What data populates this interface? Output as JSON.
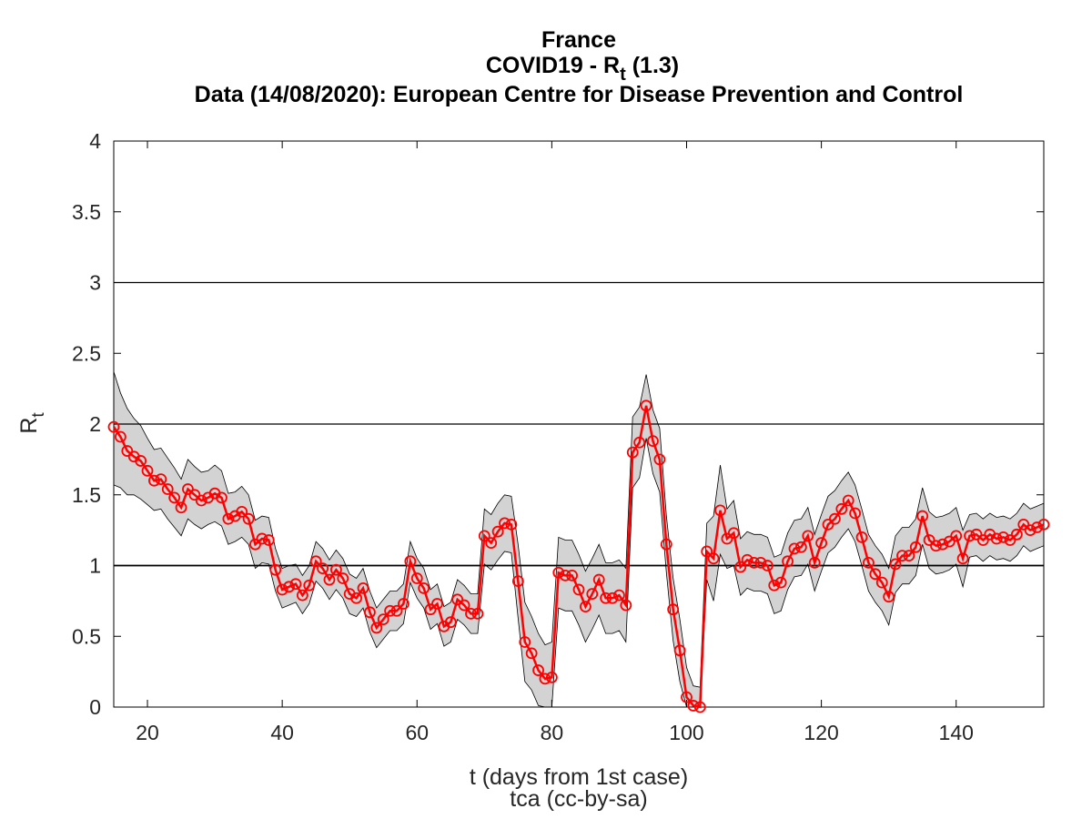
{
  "chart_data": {
    "type": "line",
    "title_lines": [
      "France",
      "COVID19 - R",
      "Data (14/08/2020): European Centre for Disease Prevention and Control"
    ],
    "title_subscript": "t",
    "title_suffix": " (1.3)",
    "xlabel": "t (days from 1st case)",
    "ylabel": "R",
    "ylabel_subscript": "t",
    "credit": "tca (cc-by-sa)",
    "xlim": [
      15,
      153
    ],
    "ylim": [
      0,
      4
    ],
    "x_ticks": [
      "20",
      "40",
      "60",
      "80",
      "100",
      "120",
      "140"
    ],
    "y_ticks": [
      "0",
      "0.5",
      "1",
      "1.5",
      "2",
      "2.5",
      "3",
      "3.5",
      "4"
    ],
    "reference_lines": [
      1,
      2,
      3
    ],
    "grid": false,
    "line_color": "#ff0000",
    "band_color": "#d3d3d3",
    "x": [
      15,
      16,
      17,
      18,
      19,
      20,
      21,
      22,
      23,
      24,
      25,
      26,
      27,
      28,
      29,
      30,
      31,
      32,
      33,
      34,
      35,
      36,
      37,
      38,
      39,
      40,
      41,
      42,
      43,
      44,
      45,
      46,
      47,
      48,
      49,
      50,
      51,
      52,
      53,
      54,
      55,
      56,
      57,
      58,
      59,
      60,
      61,
      62,
      63,
      64,
      65,
      66,
      67,
      68,
      69,
      70,
      71,
      72,
      73,
      74,
      75,
      76,
      77,
      78,
      79,
      80,
      81,
      82,
      83,
      84,
      85,
      86,
      87,
      88,
      89,
      90,
      91,
      92,
      93,
      94,
      95,
      96,
      97,
      98,
      99,
      100,
      101,
      102,
      103,
      104,
      105,
      106,
      107,
      108,
      109,
      110,
      111,
      112,
      113,
      114,
      115,
      116,
      117,
      118,
      119,
      120,
      121,
      122,
      123,
      124,
      125,
      126,
      127,
      128,
      129,
      130,
      131,
      132,
      133,
      134,
      135,
      136,
      137,
      138,
      139,
      140,
      141,
      142,
      143,
      144,
      145,
      146,
      147,
      148,
      149,
      150,
      151,
      152,
      153
    ],
    "series": [
      {
        "values": [
          1.98,
          1.91,
          1.81,
          1.77,
          1.74,
          1.67,
          1.6,
          1.61,
          1.54,
          1.48,
          1.41,
          1.54,
          1.5,
          1.46,
          1.48,
          1.51,
          1.48,
          1.33,
          1.35,
          1.38,
          1.33,
          1.15,
          1.19,
          1.18,
          0.97,
          0.83,
          0.85,
          0.87,
          0.79,
          0.86,
          1.03,
          0.98,
          0.9,
          0.97,
          0.91,
          0.8,
          0.77,
          0.84,
          0.67,
          0.56,
          0.62,
          0.68,
          0.68,
          0.73,
          1.03,
          0.91,
          0.84,
          0.69,
          0.73,
          0.57,
          0.6,
          0.76,
          0.72,
          0.66,
          0.66,
          1.21,
          1.16,
          1.24,
          1.3,
          1.29,
          0.89,
          0.46,
          0.38,
          0.26,
          0.2,
          0.21,
          0.95,
          0.93,
          0.93,
          0.83,
          0.71,
          0.8,
          0.9,
          0.77,
          0.77,
          0.79,
          0.72,
          1.8,
          1.87,
          2.13,
          1.88,
          1.75,
          1.15,
          0.69,
          0.4,
          0.07,
          0.01,
          0.0,
          1.1,
          1.05,
          1.39,
          1.19,
          1.23,
          0.99,
          1.04,
          1.02,
          1.02,
          1.0,
          0.86,
          0.88,
          1.03,
          1.12,
          1.13,
          1.21,
          1.02,
          1.16,
          1.29,
          1.33,
          1.4,
          1.46,
          1.37,
          1.2,
          1.02,
          0.94,
          0.88,
          0.78,
          1.01,
          1.07,
          1.07,
          1.13,
          1.35,
          1.18,
          1.14,
          1.15,
          1.17,
          1.21,
          1.05,
          1.21,
          1.22,
          1.18,
          1.22,
          1.19,
          1.2,
          1.18,
          1.22,
          1.29,
          1.25,
          1.27,
          1.29
        ]
      }
    ],
    "band_upper": [
      2.37,
      2.22,
      2.11,
      2.04,
      1.99,
      1.9,
      1.82,
      1.83,
      1.76,
      1.69,
      1.61,
      1.75,
      1.7,
      1.66,
      1.67,
      1.71,
      1.67,
      1.51,
      1.52,
      1.56,
      1.5,
      1.32,
      1.35,
      1.34,
      1.12,
      0.98,
      1.0,
      1.01,
      0.93,
      1.0,
      1.17,
      1.12,
      1.04,
      1.11,
      1.05,
      0.94,
      0.91,
      0.98,
      0.82,
      0.7,
      0.76,
      0.82,
      0.82,
      0.87,
      1.17,
      1.05,
      0.98,
      0.83,
      0.87,
      0.71,
      0.74,
      0.9,
      0.86,
      0.8,
      0.8,
      1.4,
      1.36,
      1.44,
      1.5,
      1.49,
      1.15,
      0.74,
      0.64,
      0.52,
      0.44,
      0.46,
      1.2,
      1.18,
      1.18,
      1.08,
      0.96,
      1.05,
      1.15,
      1.02,
      1.02,
      1.04,
      0.98,
      2.05,
      2.12,
      2.35,
      2.1,
      1.97,
      1.35,
      0.91,
      0.62,
      0.28,
      0.15,
      0.14,
      1.3,
      1.35,
      1.71,
      1.4,
      1.46,
      1.19,
      1.24,
      1.22,
      1.22,
      1.2,
      1.06,
      1.08,
      1.23,
      1.32,
      1.33,
      1.41,
      1.22,
      1.36,
      1.49,
      1.53,
      1.6,
      1.66,
      1.57,
      1.4,
      1.22,
      1.14,
      1.08,
      0.98,
      1.21,
      1.27,
      1.27,
      1.33,
      1.55,
      1.38,
      1.34,
      1.35,
      1.37,
      1.41,
      1.25,
      1.36,
      1.37,
      1.33,
      1.37,
      1.34,
      1.35,
      1.33,
      1.37,
      1.44,
      1.4,
      1.42,
      1.44
    ],
    "band_lower": [
      1.57,
      1.55,
      1.5,
      1.5,
      1.47,
      1.43,
      1.39,
      1.4,
      1.33,
      1.27,
      1.21,
      1.33,
      1.29,
      1.26,
      1.29,
      1.31,
      1.28,
      1.15,
      1.17,
      1.2,
      1.15,
      0.98,
      1.02,
      1.01,
      0.82,
      0.7,
      0.72,
      0.74,
      0.66,
      0.73,
      0.89,
      0.84,
      0.76,
      0.83,
      0.77,
      0.66,
      0.64,
      0.7,
      0.53,
      0.42,
      0.48,
      0.54,
      0.54,
      0.59,
      0.88,
      0.77,
      0.7,
      0.55,
      0.59,
      0.43,
      0.46,
      0.62,
      0.58,
      0.52,
      0.52,
      1.01,
      0.97,
      1.04,
      1.1,
      1.09,
      0.63,
      0.18,
      0.12,
      0.01,
      0.0,
      0.0,
      0.7,
      0.68,
      0.68,
      0.58,
      0.46,
      0.55,
      0.65,
      0.52,
      0.52,
      0.54,
      0.46,
      1.55,
      1.62,
      1.9,
      1.65,
      1.52,
      0.95,
      0.47,
      0.18,
      0.0,
      0.0,
      0.0,
      0.9,
      0.75,
      1.08,
      0.98,
      1.0,
      0.79,
      0.84,
      0.82,
      0.82,
      0.8,
      0.66,
      0.68,
      0.83,
      0.92,
      0.93,
      1.01,
      0.82,
      0.96,
      1.09,
      1.13,
      1.2,
      1.26,
      1.17,
      1.0,
      0.82,
      0.74,
      0.68,
      0.58,
      0.81,
      0.87,
      0.87,
      0.93,
      1.15,
      0.98,
      0.94,
      0.95,
      0.97,
      1.01,
      0.85,
      1.06,
      1.07,
      1.03,
      1.07,
      1.04,
      1.05,
      1.03,
      1.07,
      1.14,
      1.1,
      1.12,
      1.14
    ]
  }
}
